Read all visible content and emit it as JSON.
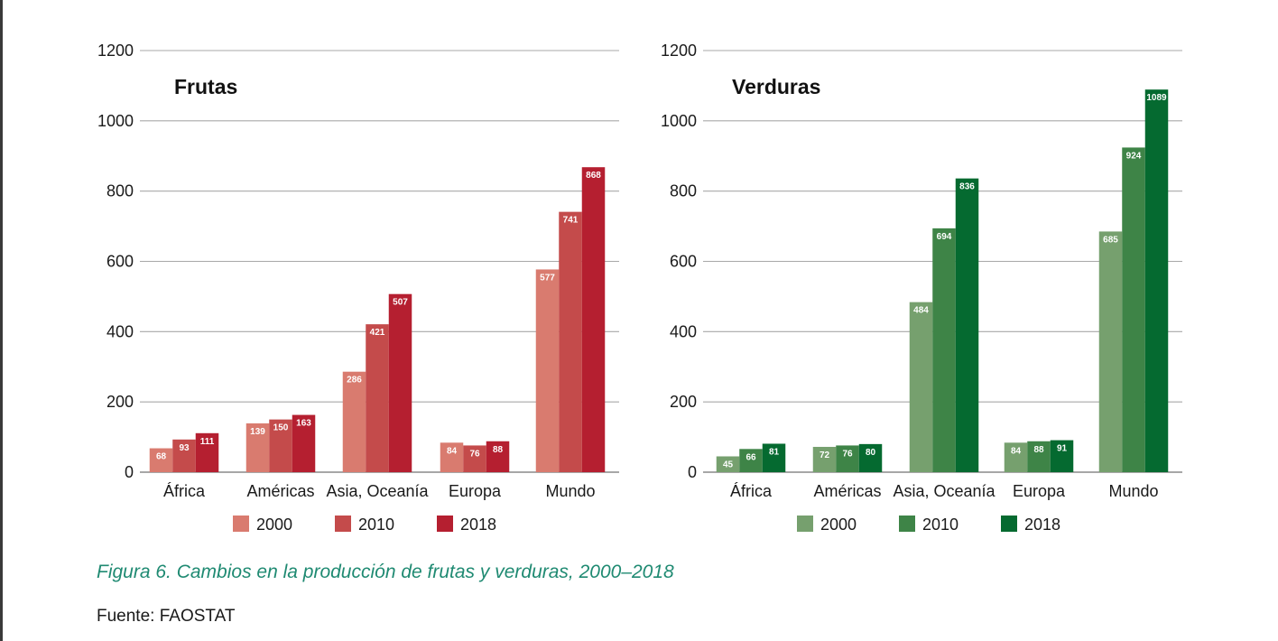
{
  "chart_data": [
    {
      "type": "bar",
      "title": "Frutas",
      "xlabel": "",
      "ylabel": "",
      "ylim": [
        0,
        1200
      ],
      "yticks": [
        "0",
        "200",
        "400",
        "600",
        "800",
        "1000",
        "1200"
      ],
      "grid": true,
      "legend_position": "bottom",
      "categories": [
        "África",
        "Américas",
        "Asia, Oceanía",
        "Europa",
        "Mundo"
      ],
      "series": [
        {
          "name": "2000",
          "color": "#d97b6f",
          "values": [
            68,
            139,
            286,
            84,
            577
          ]
        },
        {
          "name": "2010",
          "color": "#c44b4b",
          "values": [
            93,
            150,
            421,
            76,
            741
          ]
        },
        {
          "name": "2018",
          "color": "#b51f30",
          "values": [
            111,
            163,
            507,
            88,
            868
          ]
        }
      ]
    },
    {
      "type": "bar",
      "title": "Verduras",
      "xlabel": "",
      "ylabel": "",
      "ylim": [
        0,
        1200
      ],
      "yticks": [
        "0",
        "200",
        "400",
        "600",
        "800",
        "1000",
        "1200"
      ],
      "grid": true,
      "legend_position": "bottom",
      "categories": [
        "África",
        "Américas",
        "Asia, Oceanía",
        "Europa",
        "Mundo"
      ],
      "series": [
        {
          "name": "2000",
          "color": "#76a06e",
          "values": [
            45,
            72,
            484,
            84,
            685
          ]
        },
        {
          "name": "2010",
          "color": "#3e8447",
          "values": [
            66,
            76,
            694,
            88,
            924
          ]
        },
        {
          "name": "2018",
          "color": "#056a30",
          "values": [
            81,
            80,
            836,
            91,
            1089
          ]
        }
      ]
    }
  ],
  "caption": "Figura 6. Cambios en la producción de frutas y verduras, 2000–2018",
  "source": "Fuente: FAOSTAT",
  "colors": {
    "caption": "#1f8a72",
    "grid": "#a8a8a8",
    "axis": "#8a8a8a"
  }
}
